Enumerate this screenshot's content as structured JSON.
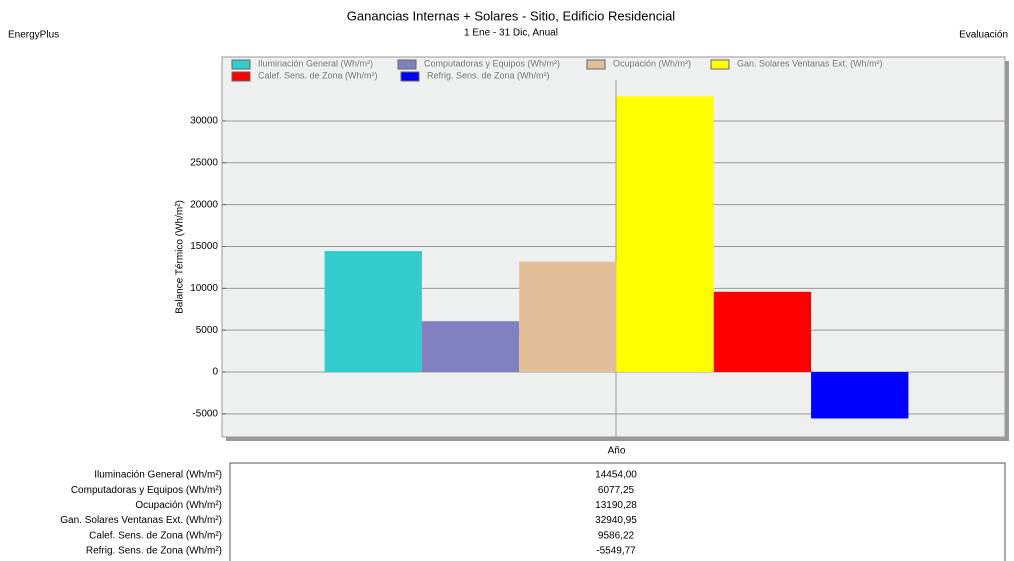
{
  "header": {
    "left": "EnergyPlus",
    "right": "Evaluación"
  },
  "chart_data": {
    "type": "bar",
    "title": "Ganancias Internas + Solares - Sitio, Edificio Residencial",
    "subtitle": "1 Ene - 31 Dic, Anual",
    "y_label": "Balance Térmico (Wh/m²)",
    "categories": [
      "Año"
    ],
    "series": [
      {
        "name": "Iluminación General (Wh/m²)",
        "color": "#33cccc",
        "values": [
          14454.0
        ],
        "value_labels": [
          "14454,00"
        ]
      },
      {
        "name": "Computadoras y Equipos (Wh/m²)",
        "color": "#8080c0",
        "values": [
          6077.25
        ],
        "value_labels": [
          "6077,25"
        ]
      },
      {
        "name": "Ocupación (Wh/m²)",
        "color": "#e3bf99",
        "values": [
          13190.28
        ],
        "value_labels": [
          "13190,28"
        ]
      },
      {
        "name": "Gan. Solares Ventanas Ext. (Wh/m²)",
        "color": "#ffff00",
        "values": [
          32940.95
        ],
        "value_labels": [
          "32940,95"
        ]
      },
      {
        "name": "Calef. Sens. de Zona (Wh/m²)",
        "color": "#ff0000",
        "values": [
          9586.22
        ],
        "value_labels": [
          "9586,22"
        ]
      },
      {
        "name": "Refrig. Sens. de Zona (Wh/m²)",
        "color": "#0000ff",
        "values": [
          -5549.77
        ],
        "value_labels": [
          "-5549,77"
        ]
      }
    ],
    "ylim": [
      -7000,
      37500
    ],
    "yticks": [
      -5000,
      0,
      5000,
      10000,
      15000,
      20000,
      25000,
      30000
    ],
    "grid": true,
    "legend": "top"
  }
}
